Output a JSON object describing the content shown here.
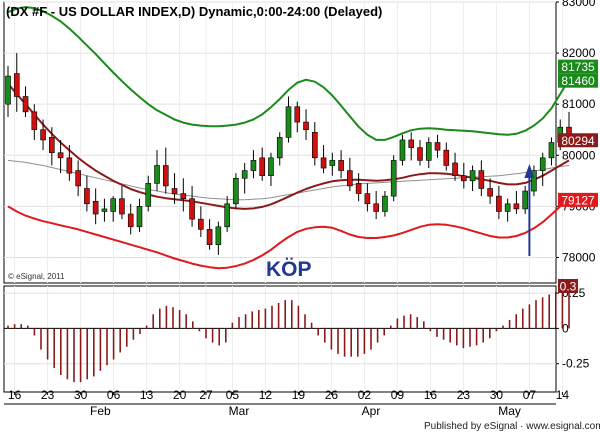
{
  "chart_data": [
    {
      "type": "candlestick",
      "title": "(DX #F - US DOLLAR INDEX,D) Dynamic,0:00-24:00 (Delayed)",
      "copyright": "© eSignal, 2011",
      "annotation": "KÖP",
      "annotation_arrow_bar": 79,
      "ylim": [
        77500,
        83000
      ],
      "y_ticks": [
        {
          "value": 83000,
          "label": "83000"
        },
        {
          "value": 82000,
          "label": "82000"
        },
        {
          "value": 81000,
          "label": "81000"
        },
        {
          "value": 80000,
          "label": "80000"
        },
        {
          "value": 79000,
          "label": "79000"
        },
        {
          "value": 78000,
          "label": "78000"
        }
      ],
      "price_labels": [
        {
          "value": 81735,
          "label": "81735",
          "color": "#1a8a1a"
        },
        {
          "value": 81460,
          "label": "81460",
          "color": "#1a8a1a"
        },
        {
          "value": 80294,
          "label": "80294",
          "color": "#8b1a1a"
        },
        {
          "value": 79127,
          "label": "79127",
          "color": "#e0191b"
        }
      ],
      "x_ticks": [
        {
          "bar": 1,
          "label": "16"
        },
        {
          "bar": 6,
          "label": "23"
        },
        {
          "bar": 11,
          "label": "30"
        },
        {
          "bar": 16,
          "label": "06"
        },
        {
          "bar": 21,
          "label": "13"
        },
        {
          "bar": 26,
          "label": "20"
        },
        {
          "bar": 30,
          "label": "27"
        },
        {
          "bar": 34,
          "label": "05"
        },
        {
          "bar": 39,
          "label": "12"
        },
        {
          "bar": 44,
          "label": "19"
        },
        {
          "bar": 49,
          "label": "26"
        },
        {
          "bar": 54,
          "label": "02"
        },
        {
          "bar": 59,
          "label": "09"
        },
        {
          "bar": 64,
          "label": "16"
        },
        {
          "bar": 69,
          "label": "23"
        },
        {
          "bar": 74,
          "label": "30"
        },
        {
          "bar": 79,
          "label": "07"
        },
        {
          "bar": 84,
          "label": "14"
        }
      ],
      "months": [
        {
          "bar": 14,
          "label": "Feb"
        },
        {
          "bar": 35,
          "label": "Mar"
        },
        {
          "bar": 55,
          "label": "Apr"
        },
        {
          "bar": 76,
          "label": "May"
        }
      ],
      "bars": [
        [
          81000,
          81750,
          80750,
          81550
        ],
        [
          81600,
          82000,
          80850,
          81150
        ],
        [
          81150,
          81350,
          80750,
          80850
        ],
        [
          80850,
          81000,
          80300,
          80500
        ],
        [
          80500,
          80700,
          80100,
          80300
        ],
        [
          80350,
          80550,
          79800,
          80050
        ],
        [
          80050,
          80300,
          79650,
          79950
        ],
        [
          79950,
          80200,
          79500,
          79650
        ],
        [
          79700,
          79900,
          79200,
          79400
        ],
        [
          79350,
          79600,
          78900,
          79050
        ],
        [
          79100,
          79350,
          78650,
          78850
        ],
        [
          78900,
          79150,
          78700,
          78950
        ],
        [
          78900,
          79200,
          78700,
          79150
        ],
        [
          79150,
          79400,
          78750,
          78850
        ],
        [
          78850,
          79050,
          78450,
          78600
        ],
        [
          78600,
          79150,
          78500,
          79000
        ],
        [
          79000,
          79600,
          78900,
          79450
        ],
        [
          79450,
          80100,
          79300,
          79800
        ],
        [
          79800,
          80150,
          79250,
          79400
        ],
        [
          79350,
          79650,
          79050,
          79250
        ],
        [
          79250,
          79550,
          78900,
          79150
        ],
        [
          79150,
          79400,
          78600,
          78750
        ],
        [
          78750,
          79000,
          78400,
          78550
        ],
        [
          78550,
          78750,
          78150,
          78250
        ],
        [
          78250,
          78700,
          78050,
          78600
        ],
        [
          78600,
          79200,
          78500,
          79050
        ],
        [
          79050,
          79650,
          78950,
          79550
        ],
        [
          79550,
          79850,
          79250,
          79700
        ],
        [
          79700,
          80100,
          79550,
          79900
        ],
        [
          79950,
          80150,
          79500,
          79600
        ],
        [
          79600,
          80050,
          79400,
          79950
        ],
        [
          79950,
          80450,
          79800,
          80350
        ],
        [
          80350,
          81150,
          80250,
          80950
        ],
        [
          80950,
          81050,
          80450,
          80650
        ],
        [
          80650,
          80900,
          80300,
          80500
        ],
        [
          80450,
          80650,
          79800,
          79950
        ],
        [
          79950,
          80200,
          79650,
          79750
        ],
        [
          79800,
          80050,
          79600,
          79900
        ],
        [
          79900,
          80100,
          79550,
          79700
        ],
        [
          79700,
          79950,
          79300,
          79400
        ],
        [
          79450,
          79650,
          79100,
          79250
        ],
        [
          79250,
          79450,
          78900,
          79050
        ],
        [
          79050,
          79300,
          78750,
          78900
        ],
        [
          78900,
          79300,
          78800,
          79200
        ],
        [
          79200,
          80000,
          79100,
          79900
        ],
        [
          79900,
          80400,
          79800,
          80300
        ],
        [
          80300,
          80450,
          79900,
          80150
        ],
        [
          80150,
          80300,
          79800,
          79900
        ],
        [
          79900,
          80350,
          79750,
          80250
        ],
        [
          80250,
          80400,
          79950,
          80100
        ],
        [
          80100,
          80250,
          79700,
          79800
        ],
        [
          79850,
          80050,
          79500,
          79600
        ],
        [
          79600,
          79850,
          79350,
          79500
        ],
        [
          79500,
          79800,
          79300,
          79700
        ],
        [
          79700,
          79900,
          79200,
          79350
        ],
        [
          79350,
          79550,
          79050,
          79200
        ],
        [
          79200,
          79400,
          78750,
          78900
        ],
        [
          78900,
          79150,
          78700,
          79050
        ],
        [
          79050,
          79300,
          78850,
          78950
        ],
        [
          78950,
          79400,
          78850,
          79300
        ],
        [
          79300,
          79800,
          79200,
          79700
        ],
        [
          79700,
          80050,
          79400,
          79950
        ],
        [
          79950,
          80350,
          79800,
          80250
        ],
        [
          80250,
          80700,
          80100,
          80550
        ],
        [
          80550,
          80850,
          80250,
          80350
        ]
      ],
      "upper_band": [
        82800,
        82870,
        82900,
        82880,
        82820,
        82730,
        82620,
        82480,
        82320,
        82150,
        81980,
        81800,
        81620,
        81450,
        81290,
        81140,
        81000,
        80880,
        80790,
        80700,
        80640,
        80600,
        80580,
        80570,
        80570,
        80580,
        80600,
        80640,
        80700,
        80800,
        80940,
        81100,
        81280,
        81420,
        81480,
        81440,
        81330,
        81170,
        80970,
        80760,
        80560,
        80400,
        80300,
        80300,
        80360,
        80430,
        80490,
        80520,
        80530,
        80520,
        80500,
        80490,
        80480,
        80470,
        80450,
        80430,
        80410,
        80400,
        80420,
        80480,
        80580,
        80720,
        80920,
        81200,
        81480
      ],
      "middle_band": [
        81400,
        81200,
        81000,
        80800,
        80600,
        80420,
        80250,
        80100,
        79950,
        79820,
        79700,
        79600,
        79500,
        79420,
        79340,
        79280,
        79230,
        79190,
        79160,
        79140,
        79120,
        79100,
        79070,
        79040,
        79010,
        78980,
        78960,
        78950,
        78960,
        78990,
        79040,
        79110,
        79190,
        79270,
        79340,
        79400,
        79450,
        79490,
        79510,
        79520,
        79520,
        79510,
        79500,
        79510,
        79530,
        79560,
        79600,
        79630,
        79650,
        79650,
        79640,
        79620,
        79590,
        79560,
        79530,
        79500,
        79460,
        79430,
        79430,
        79460,
        79520,
        79600,
        79700,
        79800,
        79900
      ],
      "lower_band": [
        79000,
        78900,
        78820,
        78760,
        78710,
        78670,
        78630,
        78590,
        78550,
        78500,
        78450,
        78400,
        78350,
        78300,
        78250,
        78200,
        78150,
        78100,
        78040,
        77980,
        77930,
        77880,
        77840,
        77810,
        77790,
        77800,
        77830,
        77880,
        77950,
        78040,
        78150,
        78280,
        78400,
        78500,
        78560,
        78590,
        78600,
        78580,
        78520,
        78450,
        78400,
        78380,
        78380,
        78400,
        78430,
        78480,
        78540,
        78600,
        78640,
        78650,
        78640,
        78610,
        78570,
        78520,
        78470,
        78420,
        78390,
        78390,
        78420,
        78480,
        78570,
        78690,
        78840,
        79000,
        79127
      ],
      "long_ma": [
        79900,
        79880,
        79860,
        79830,
        79800,
        79760,
        79720,
        79680,
        79640,
        79600,
        79560,
        79520,
        79480,
        79440,
        79400,
        79360,
        79330,
        79300,
        79270,
        79240,
        79220,
        79200,
        79180,
        79160,
        79150,
        79140,
        79130,
        79130,
        79140,
        79150,
        79170,
        79200,
        79230,
        79260,
        79290,
        79320,
        79350,
        79380,
        79400,
        79420,
        79440,
        79450,
        79460,
        79470,
        79480,
        79490,
        79500,
        79510,
        79520,
        79530,
        79540,
        79550,
        79560,
        79570,
        79580,
        79590,
        79600,
        79620,
        79640,
        79660,
        79690,
        79720,
        79750,
        79780,
        79800
      ],
      "osc_ylim": [
        -0.45,
        0.3
      ],
      "osc_ticks": [
        {
          "value": 0.25,
          "label": "0.25"
        },
        {
          "value": 0,
          "label": "0"
        },
        {
          "value": -0.25,
          "label": "-0.25"
        }
      ],
      "osc_last_label": "0.3",
      "oscillator": [
        0.02,
        0.03,
        0.03,
        0.02,
        -0.05,
        -0.15,
        -0.22,
        -0.28,
        -0.33,
        -0.36,
        -0.38,
        -0.38,
        -0.36,
        -0.34,
        -0.3,
        -0.26,
        -0.22,
        -0.17,
        -0.13,
        -0.08,
        -0.04,
        0.02,
        0.1,
        0.14,
        0.16,
        0.15,
        0.13,
        0.1,
        0.05,
        -0.02,
        -0.07,
        -0.1,
        -0.12,
        -0.1,
        0.04,
        0.08,
        0.1,
        0.12,
        0.13,
        0.14,
        0.16,
        0.18,
        0.2,
        0.2,
        0.16,
        0.1,
        0.04,
        -0.05,
        -0.1,
        -0.15,
        -0.18,
        -0.2,
        -0.2,
        -0.2,
        -0.18,
        -0.15,
        -0.1,
        -0.05,
        0.02,
        0.07,
        0.09,
        0.1,
        0.08,
        0.05,
        -0.02,
        -0.06,
        -0.08,
        -0.1,
        -0.12,
        -0.14,
        -0.13,
        -0.12,
        -0.1,
        -0.07,
        -0.02,
        0.02,
        0.06,
        0.1,
        0.14,
        0.17,
        0.2,
        0.22,
        0.24,
        0.26,
        0.28,
        0.3
      ]
    }
  ],
  "footer": {
    "published": "Published by eSignal · www.esignal.com"
  }
}
